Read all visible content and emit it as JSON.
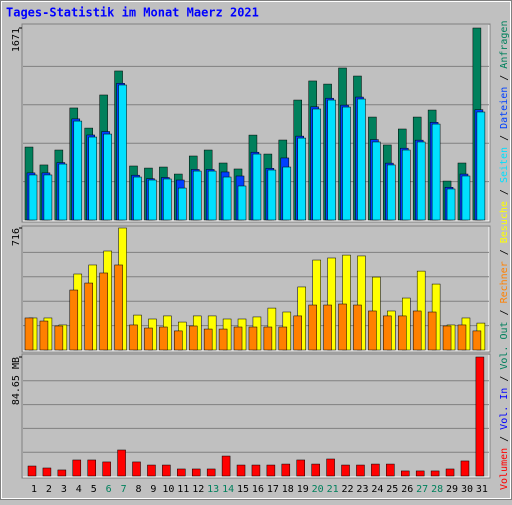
{
  "title": "Tages-Statistik im Monat Maerz 2021",
  "categories": [
    "1",
    "2",
    "3",
    "4",
    "5",
    "6",
    "7",
    "8",
    "9",
    "10",
    "11",
    "12",
    "13",
    "14",
    "15",
    "16",
    "17",
    "18",
    "19",
    "20",
    "21",
    "22",
    "23",
    "24",
    "25",
    "26",
    "27",
    "28",
    "29",
    "30",
    "31"
  ],
  "highlight_categories": [
    "6",
    "7",
    "13",
    "14",
    "20",
    "21",
    "27",
    "28"
  ],
  "highlight_color": "#00805c",
  "legend_separator": "/",
  "chart_data": [
    {
      "type": "bar",
      "ylim": [
        0,
        1671
      ],
      "yticks": [
        1671
      ],
      "grid": true,
      "series": [
        {
          "name": "Anfragen",
          "color": "#00805c",
          "values": [
            635,
            479,
            609,
            975,
            800,
            1088,
            1297,
            470,
            452,
            461,
            400,
            557,
            609,
            496,
            444,
            739,
            574,
            696,
            1044,
            1210,
            1183,
            1323,
            1253,
            896,
            653,
            792,
            896,
            957,
            339,
            496,
            1671
          ]
        },
        {
          "name": "Dateien",
          "color": "#0040ff",
          "values": [
            410,
            410,
            500,
            880,
            740,
            770,
            1190,
            390,
            360,
            370,
            348,
            440,
            440,
            418,
            383,
            590,
            450,
            540,
            730,
            985,
            1060,
            1000,
            1070,
            700,
            495,
            625,
            695,
            850,
            285,
            400,
            960
          ]
        },
        {
          "name": "Seiten",
          "color": "#00e0ff",
          "values": [
            392,
            392,
            487,
            861,
            722,
            748,
            1175,
            374,
            348,
            357,
            278,
            426,
            426,
            374,
            296,
            574,
            435,
            461,
            713,
            966,
            1044,
            983,
            1053,
            679,
            479,
            609,
            679,
            835,
            270,
            383,
            940
          ]
        }
      ]
    },
    {
      "type": "bar",
      "ylim": [
        0,
        716
      ],
      "yticks": [
        716
      ],
      "grid": true,
      "series": [
        {
          "name": "Besuche",
          "color": "#ffff00",
          "values": [
            188,
            188,
            147,
            446,
            499,
            581,
            716,
            205,
            182,
            200,
            164,
            200,
            200,
            182,
            182,
            194,
            246,
            223,
            370,
            528,
            540,
            557,
            552,
            428,
            229,
            305,
            463,
            387,
            147,
            188,
            158
          ]
        },
        {
          "name": "Rechner",
          "color": "#ff8000",
          "values": [
            188,
            170,
            141,
            352,
            393,
            452,
            499,
            147,
            129,
            135,
            112,
            141,
            123,
            123,
            135,
            135,
            135,
            135,
            200,
            264,
            264,
            270,
            264,
            229,
            200,
            200,
            229,
            223,
            141,
            147,
            112
          ]
        }
      ]
    },
    {
      "type": "bar",
      "ylim": [
        0,
        84.65
      ],
      "yticks": [
        {
          "value": 84.65,
          "label": "84.65 MB"
        }
      ],
      "grid": true,
      "series": [
        {
          "name": "Volumen",
          "color": "#ff0000",
          "values": [
            7.1,
            5.7,
            4.3,
            11.4,
            11.4,
            10,
            18.5,
            10,
            7.8,
            7.8,
            5,
            5,
            5,
            14.2,
            7.8,
            7.8,
            7.8,
            8.5,
            11.4,
            8.5,
            12.1,
            7.8,
            7.8,
            8.5,
            8.5,
            3.6,
            3.6,
            3.6,
            5,
            10.7,
            84.65
          ]
        }
      ],
      "extra_legend": [
        {
          "name": "Vol. In",
          "color": "#0000ff"
        },
        {
          "name": "Vol. Out",
          "color": "#00805c"
        }
      ]
    }
  ]
}
